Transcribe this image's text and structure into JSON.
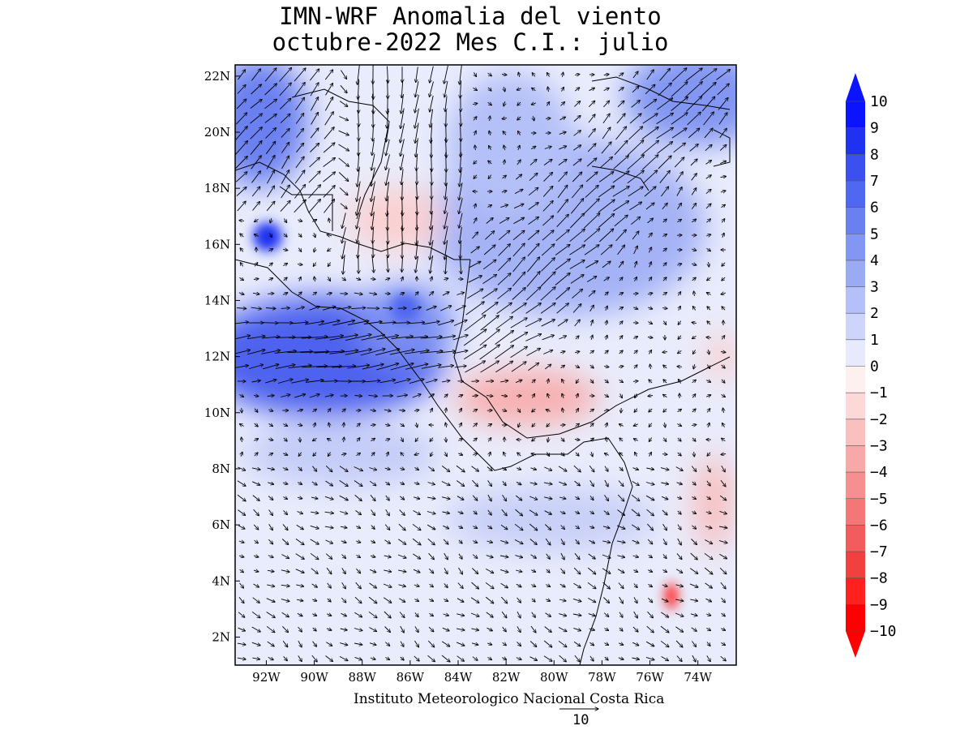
{
  "title": {
    "line1": "IMN-WRF Anomalia del viento",
    "line2": "octubre-2022 Mes C.I.: julio"
  },
  "credit": "Instituto Meteorologico Nacional Costa Rica",
  "reference_vector": {
    "value": "10"
  },
  "chart_data": {
    "type": "heatmap",
    "variable": "wind anomaly (vectors + shaded magnitude)",
    "axes": {
      "lat_ticks": [
        "2N",
        "4N",
        "6N",
        "8N",
        "10N",
        "12N",
        "14N",
        "16N",
        "18N",
        "20N",
        "22N"
      ],
      "lon_ticks": [
        "92W",
        "90W",
        "88W",
        "86W",
        "84W",
        "82W",
        "80W",
        "78W",
        "76W",
        "74W"
      ],
      "lat_range": [
        1.0,
        22.4
      ],
      "lon_range": [
        -93.3,
        -72.4
      ]
    },
    "colorbar": {
      "labels": [
        "10",
        "9",
        "8",
        "7",
        "6",
        "5",
        "4",
        "3",
        "2",
        "1",
        "0",
        "-1",
        "-2",
        "-3",
        "-4",
        "-5",
        "-6",
        "-7",
        "-8",
        "-9",
        "-10"
      ],
      "colors_positive": [
        "#0a14ff",
        "#1e32f0",
        "#3c50f0",
        "#5068f0",
        "#6a80f0",
        "#8296f2",
        "#9aaaf4",
        "#b4c0f8",
        "#cdd5fa",
        "#e6eafc"
      ],
      "colors_negative": [
        "#fff0f0",
        "#fcd8d8",
        "#fac0c0",
        "#f8a8a8",
        "#f69090",
        "#f47676",
        "#f25c5c",
        "#f04040",
        "#ff2020",
        "#ff0000"
      ]
    },
    "features": [
      {
        "label": "strong westerly anomaly over Pacific",
        "lat": 12,
        "lon": -90,
        "magnitude": 8
      },
      {
        "label": "northeasterly anomaly over Caribbean",
        "lat": 15,
        "lon": -81,
        "magnitude": 5
      },
      {
        "label": "negative anomaly zone",
        "lat": 10.5,
        "lon": -81,
        "magnitude": -2
      },
      {
        "label": "negative anomaly zone",
        "lat": 17,
        "lon": -86.5,
        "magnitude": -1
      },
      {
        "label": "local minimum",
        "lat": 3.5,
        "lon": -75,
        "magnitude": -8
      }
    ]
  }
}
